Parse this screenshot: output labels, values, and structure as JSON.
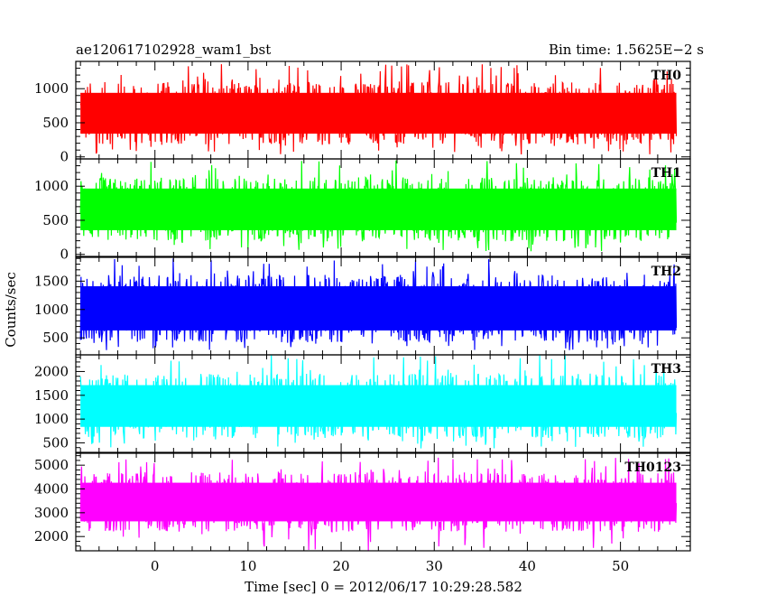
{
  "header": {
    "left_title": "ae120617102928_wam1_bst",
    "right_title": "Bin time: 1.5625E−2 s"
  },
  "chart_data": {
    "type": "line",
    "xlabel": "Time [sec] 0 = 2012/06/17 10:29:28.582",
    "ylabel": "Counts/sec",
    "xlim": [
      -8.5,
      57.5
    ],
    "x_range": [
      -8,
      56
    ],
    "bin_time": 0.015625,
    "xticks": [
      0,
      10,
      20,
      30,
      40,
      50
    ],
    "x_tick_labels": [
      "0",
      "10",
      "20",
      "30",
      "40",
      "50"
    ],
    "grid": false,
    "panels": [
      {
        "label": "TH0",
        "color": "#ff0000",
        "ylim": [
          -30,
          1400
        ],
        "yticks": [
          0,
          500,
          1000
        ],
        "y_tick_labels": [
          "0",
          "500",
          "1000"
        ],
        "band": [
          180,
          1100
        ],
        "extremes": [
          30,
          1360
        ]
      },
      {
        "label": "TH1",
        "color": "#00ff00",
        "ylim": [
          -30,
          1400
        ],
        "yticks": [
          0,
          500,
          1000
        ],
        "y_tick_labels": [
          "0",
          "500",
          "1000"
        ],
        "band": [
          190,
          1130
        ],
        "extremes": [
          40,
          1380
        ]
      },
      {
        "label": "TH2",
        "color": "#0000ff",
        "ylim": [
          200,
          1920
        ],
        "yticks": [
          500,
          1000,
          1500
        ],
        "y_tick_labels": [
          "500",
          "1000",
          "1500"
        ],
        "band": [
          420,
          1620
        ],
        "extremes": [
          270,
          1900
        ]
      },
      {
        "label": "TH3",
        "color": "#00ffff",
        "ylim": [
          300,
          2350
        ],
        "yticks": [
          500,
          1000,
          1500,
          2000
        ],
        "y_tick_labels": [
          "500",
          "1000",
          "1500",
          "2000"
        ],
        "band": [
          600,
          1950
        ],
        "extremes": [
          380,
          2350
        ]
      },
      {
        "label": "TH0123",
        "color": "#ff00ff",
        "ylim": [
          1400,
          5500
        ],
        "yticks": [
          2000,
          3000,
          4000,
          5000
        ],
        "y_tick_labels": [
          "2000",
          "3000",
          "4000",
          "5000"
        ],
        "band": [
          2200,
          4700
        ],
        "extremes": [
          1400,
          5350
        ]
      }
    ]
  }
}
